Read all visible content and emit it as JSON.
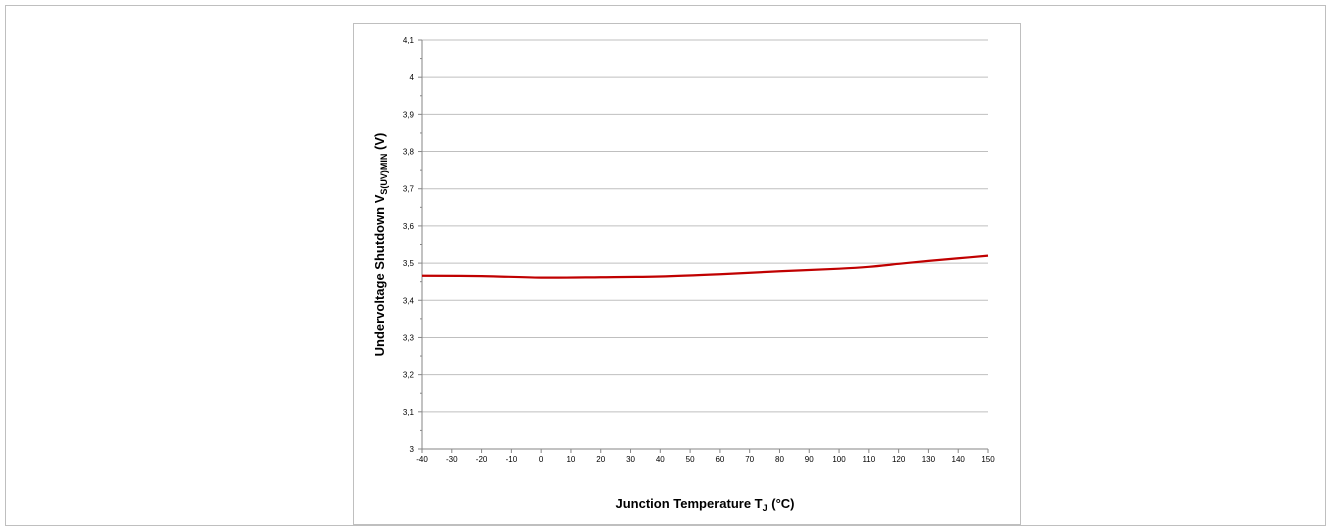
{
  "chart_data": {
    "type": "line",
    "xlabel": {
      "main": "Junction Temperature T",
      "sub": "J",
      "suffix": " (°C)"
    },
    "ylabel": {
      "main": "Undervoltage Shutdown  V",
      "sub": "S(UV)MIN",
      "suffix": " (V)"
    },
    "xlim": [
      -40,
      150
    ],
    "ylim": [
      3.0,
      4.1
    ],
    "x_ticks": [
      -40,
      -30,
      -20,
      -10,
      0,
      10,
      20,
      30,
      40,
      50,
      60,
      70,
      80,
      90,
      100,
      110,
      120,
      130,
      140,
      150
    ],
    "x_tick_labels": [
      "-40",
      "-30",
      "-20",
      "-10",
      "0",
      "10",
      "20",
      "30",
      "40",
      "50",
      "60",
      "70",
      "80",
      "90",
      "100",
      "110",
      "120",
      "130",
      "140",
      "150"
    ],
    "y_ticks": [
      3.0,
      3.1,
      3.2,
      3.3,
      3.4,
      3.5,
      3.6,
      3.7,
      3.8,
      3.9,
      4.0,
      4.1
    ],
    "y_tick_labels": [
      "3",
      "3,1",
      "3,2",
      "3,3",
      "3,4",
      "3,5",
      "3,6",
      "3,7",
      "3,8",
      "3,9",
      "4",
      "4,1"
    ],
    "grid": "horizontal",
    "series": [
      {
        "color": "#c00000",
        "x": [
          -40,
          -20,
          0,
          20,
          40,
          60,
          80,
          100,
          110,
          120,
          130,
          140,
          150
        ],
        "y": [
          3.466,
          3.465,
          3.461,
          3.462,
          3.464,
          3.47,
          3.478,
          3.485,
          3.49,
          3.498,
          3.506,
          3.513,
          3.52
        ]
      }
    ]
  }
}
